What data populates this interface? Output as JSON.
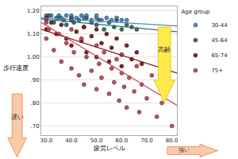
{
  "chart_data": {
    "type": "scatter",
    "x_label": "疲労レベル",
    "y_label": "歩行速度",
    "legend_title": "Age group",
    "legend": "right",
    "grid": true,
    "xlim": [
      28,
      82
    ],
    "ylim": [
      0.66,
      1.22
    ],
    "xticks": [
      {
        "value": 30,
        "label": "30.0"
      },
      {
        "value": 40,
        "label": "40.0"
      },
      {
        "value": 50,
        "label": "50.0"
      },
      {
        "value": 60,
        "label": "60.0"
      },
      {
        "value": 70,
        "label": "70.0"
      },
      {
        "value": 80,
        "label": "80.0"
      }
    ],
    "yticks": [
      {
        "value": 0.7,
        "label": ".70"
      },
      {
        "value": 0.8,
        "label": ".80"
      },
      {
        "value": 0.9,
        "label": ".90"
      },
      {
        "value": 1.0,
        "label": "1.00"
      },
      {
        "value": 1.1,
        "label": "1.10"
      },
      {
        "value": 1.2,
        "label": "1.20"
      }
    ],
    "annotations": [
      {
        "text": "高齢"
      },
      {
        "text": "遅い"
      },
      {
        "text": "強い"
      }
    ],
    "series": [
      {
        "name": "30-44",
        "type": "scatter",
        "marker": "circle",
        "color": "#4f87c4",
        "x": [
          30,
          30,
          32,
          34,
          35,
          36,
          38,
          40,
          40,
          42,
          44,
          45,
          46,
          48,
          50,
          50,
          52,
          54,
          56,
          58,
          60,
          62
        ],
        "values": [
          1.18,
          1.17,
          1.18,
          1.17,
          1.18,
          1.17,
          1.18,
          1.17,
          1.18,
          1.17,
          1.18,
          1.17,
          1.18,
          1.16,
          1.17,
          1.18,
          1.16,
          1.17,
          1.16,
          1.17,
          1.16,
          1.16
        ]
      },
      {
        "name": "45-64",
        "type": "scatter",
        "marker": "circle",
        "color": "#2f6f6a",
        "x": [
          30,
          31,
          33,
          35,
          37,
          38,
          40,
          41,
          43,
          45,
          46,
          48,
          50,
          51,
          53,
          55,
          57,
          58,
          60,
          62,
          64,
          66
        ],
        "values": [
          1.16,
          1.18,
          1.15,
          1.17,
          1.16,
          1.14,
          1.17,
          1.15,
          1.16,
          1.13,
          1.17,
          1.15,
          1.14,
          1.16,
          1.12,
          1.15,
          1.13,
          1.16,
          1.12,
          1.14,
          1.13,
          1.12
        ]
      },
      {
        "name": "65-74",
        "type": "scatter",
        "marker": "circle",
        "color": "#8b1a1a",
        "x": [
          30,
          30,
          32,
          34,
          36,
          38,
          40,
          40,
          42,
          44,
          45,
          46,
          48,
          50,
          50,
          52,
          54,
          55,
          56,
          58,
          60,
          60,
          62,
          64,
          66,
          68
        ],
        "values": [
          1.17,
          1.12,
          1.15,
          1.1,
          1.14,
          1.08,
          1.16,
          1.05,
          1.11,
          1.07,
          1.13,
          1.02,
          1.09,
          1.12,
          1.0,
          1.06,
          1.1,
          0.98,
          1.04,
          1.08,
          1.01,
          0.96,
          1.05,
          0.99,
          1.02,
          0.97
        ]
      },
      {
        "name": "75+",
        "type": "scatter",
        "marker": "circle",
        "color": "#c94a5a",
        "x": [
          30,
          30,
          31,
          33,
          35,
          36,
          38,
          40,
          40,
          41,
          43,
          44,
          45,
          46,
          48,
          50,
          50,
          51,
          52,
          53,
          55,
          56,
          57,
          58,
          59,
          60,
          60,
          61,
          62,
          63,
          65,
          66,
          67,
          68,
          70,
          72,
          74,
          76,
          80
        ],
        "values": [
          1.15,
          1.08,
          1.12,
          1.03,
          1.1,
          0.98,
          1.06,
          1.12,
          0.95,
          1.02,
          0.92,
          1.08,
          0.88,
          1.0,
          0.94,
          1.05,
          0.86,
          0.97,
          0.91,
          1.02,
          0.84,
          0.95,
          0.89,
          0.99,
          0.81,
          0.93,
          1.01,
          0.87,
          0.78,
          0.91,
          0.85,
          0.96,
          0.76,
          0.88,
          0.82,
          0.92,
          0.74,
          0.8,
          0.7
        ]
      },
      {
        "type": "line",
        "line_style": "solid",
        "color": "#4f87c4",
        "x": [
          28,
          82
        ],
        "values": [
          1.17,
          1.135
        ]
      },
      {
        "type": "line",
        "line_style": "solid",
        "color": "#2f6f6a",
        "x": [
          28,
          82
        ],
        "values": [
          1.165,
          1.11
        ]
      },
      {
        "type": "line",
        "line_style": "solid",
        "color": "#8b1a1a",
        "x": [
          28,
          82
        ],
        "values": [
          1.12,
          0.93
        ]
      },
      {
        "type": "line",
        "line_style": "solid",
        "color": "#c94a5a",
        "x": [
          28,
          82
        ],
        "values": [
          1.15,
          0.79
        ]
      }
    ]
  }
}
